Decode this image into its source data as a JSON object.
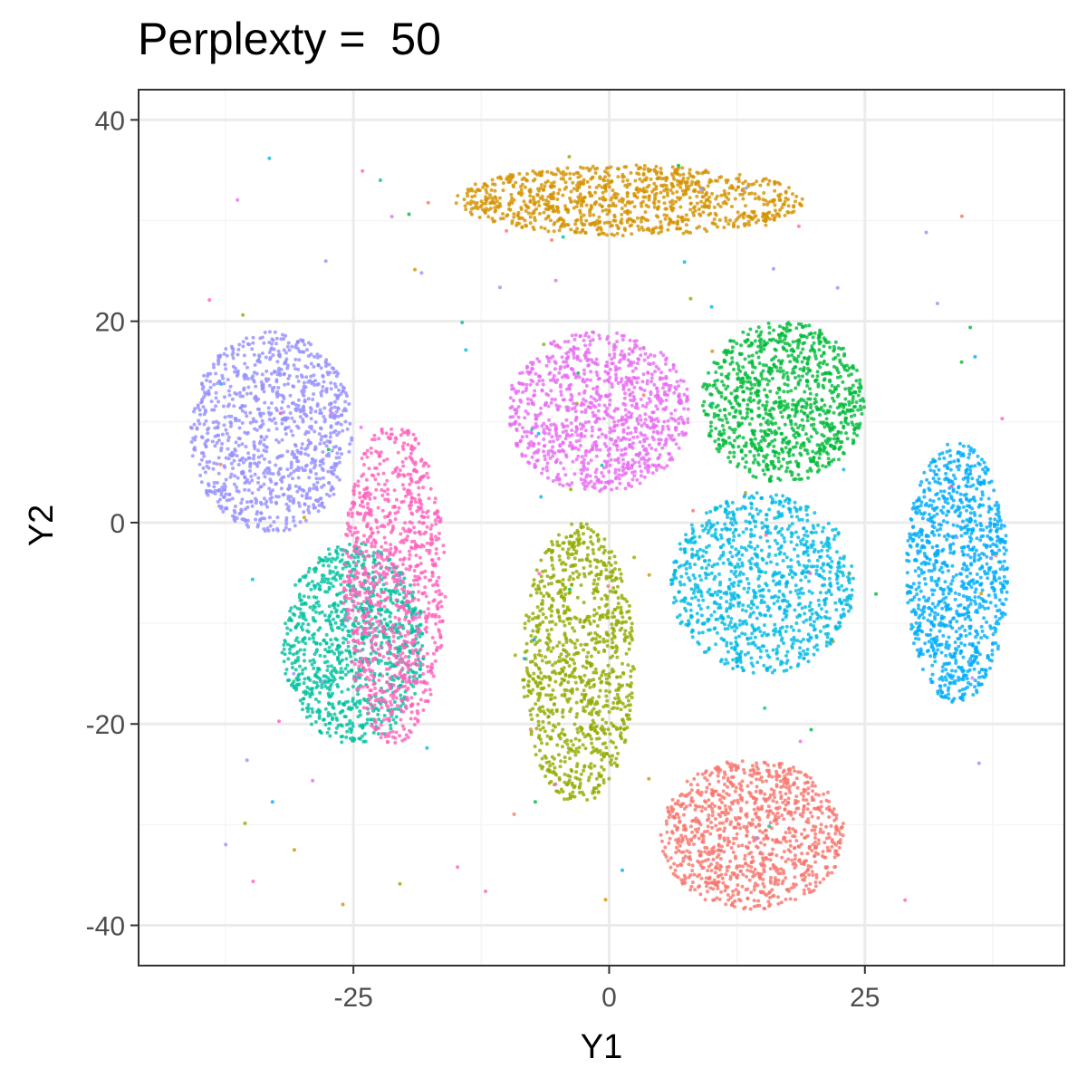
{
  "chart_data": {
    "type": "scatter",
    "title": "Perplexty =  50",
    "xlabel": "Y1",
    "ylabel": "Y2",
    "xlim": [
      -46,
      44.5
    ],
    "ylim": [
      -44,
      43
    ],
    "x_ticks": [
      -25,
      0,
      25
    ],
    "x_tick_labels": [
      "-25",
      "0",
      "25"
    ],
    "y_ticks": [
      -40,
      -20,
      0,
      20,
      40
    ],
    "y_tick_labels": [
      "-40",
      "-20",
      "0",
      "20",
      "40"
    ],
    "grid": true,
    "legend": "none",
    "theme_colors": {
      "panel_border": "#333333",
      "grid_major": "#ebebeb",
      "grid_minor": "#f5f5f5",
      "background": "#ffffff"
    },
    "series": [
      {
        "color": "#F8766D",
        "cluster_center": [
          14,
          -31
        ],
        "cluster_spread": [
          9,
          7.5
        ],
        "approx_points": 1000
      },
      {
        "color": "#D39200",
        "cluster_center": [
          2,
          32
        ],
        "cluster_spread": [
          17,
          3.5
        ],
        "approx_points": 1000
      },
      {
        "color": "#93AA00",
        "cluster_center": [
          -3,
          -14
        ],
        "cluster_spread": [
          5.5,
          14
        ],
        "approx_points": 1000
      },
      {
        "color": "#00BA38",
        "cluster_center": [
          17,
          12
        ],
        "cluster_spread": [
          8,
          8
        ],
        "approx_points": 1000
      },
      {
        "color": "#00C19F",
        "cluster_center": [
          -25,
          -12
        ],
        "cluster_spread": [
          7,
          10
        ],
        "approx_points": 1000
      },
      {
        "color": "#00B9E3",
        "cluster_center": [
          15,
          -6
        ],
        "cluster_spread": [
          9,
          9
        ],
        "approx_points": 1000
      },
      {
        "color": "#00ADFA",
        "cluster_center": [
          34,
          -5
        ],
        "cluster_spread": [
          5,
          13
        ],
        "approx_points": 1000
      },
      {
        "color": "#9590FF",
        "cluster_center": [
          -33,
          9
        ],
        "cluster_spread": [
          8,
          10
        ],
        "approx_points": 1000
      },
      {
        "color": "#E76BF3",
        "cluster_center": [
          -1,
          11
        ],
        "cluster_spread": [
          9,
          8
        ],
        "approx_points": 1000
      },
      {
        "color": "#FF62BC",
        "cluster_center": [
          -21,
          -6
        ],
        "cluster_spread": [
          5,
          16
        ],
        "approx_points": 1000
      }
    ]
  }
}
